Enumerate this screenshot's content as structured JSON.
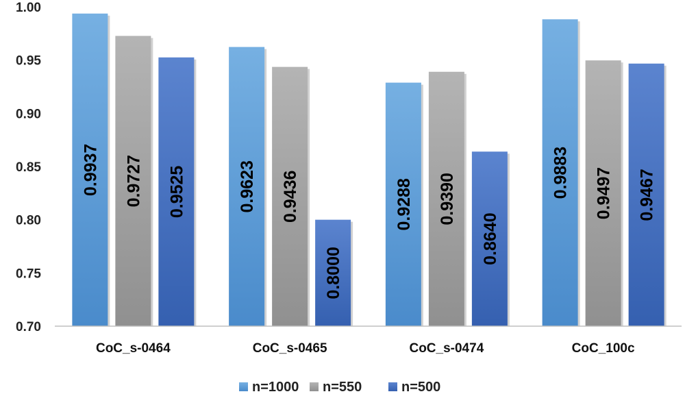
{
  "chart_data": {
    "type": "bar",
    "title": "",
    "xlabel": "",
    "ylabel": "",
    "ylim": [
      0.7,
      1.0
    ],
    "yticks": [
      "0.70",
      "0.75",
      "0.80",
      "0.85",
      "0.90",
      "0.95",
      "1.00"
    ],
    "grid": false,
    "legend_position": "bottom-center",
    "categories": [
      "CoC_s-0464",
      "CoC_s-0465",
      "CoC_s-0474",
      "CoC_100c"
    ],
    "series": [
      {
        "name": "n=1000",
        "color": "#5b9bd5",
        "values": [
          0.9937,
          0.9623,
          0.9288,
          0.9883
        ],
        "labels": [
          "0.9937",
          "0.9623",
          "0.9288",
          "0.9883"
        ]
      },
      {
        "name": "n=550",
        "color": "#a5a5a5",
        "values": [
          0.9727,
          0.9436,
          0.939,
          0.9497
        ],
        "labels": [
          "0.9727",
          "0.9436",
          "0.9390",
          "0.9497"
        ]
      },
      {
        "name": "n=500",
        "color": "#4472c4",
        "values": [
          0.9525,
          0.8,
          0.864,
          0.9467
        ],
        "labels": [
          "0.9525",
          "0.8000",
          "0.8640",
          "0.9467"
        ]
      }
    ]
  }
}
